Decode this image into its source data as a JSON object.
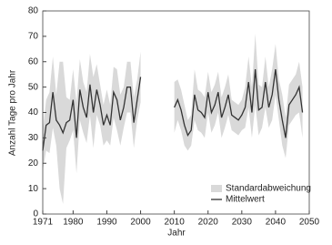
{
  "chart_data": {
    "type": "line",
    "xlabel": "Jahr",
    "ylabel": "Anzahl Tage pro Jahr",
    "x": [
      1971,
      1972,
      1973,
      1974,
      1975,
      1976,
      1977,
      1978,
      1979,
      1980,
      1981,
      1982,
      1983,
      1984,
      1985,
      1986,
      1987,
      1988,
      1989,
      1990,
      1991,
      1992,
      1993,
      1994,
      1995,
      1996,
      1997,
      1998,
      1999,
      2000,
      2001,
      2002,
      2003,
      2004,
      2005,
      2006,
      2007,
      2008,
      2009,
      2010,
      2011,
      2012,
      2013,
      2014,
      2015,
      2016,
      2017,
      2018,
      2019,
      2020,
      2021,
      2022,
      2023,
      2024,
      2025,
      2026,
      2027,
      2028,
      2029,
      2030,
      2031,
      2032,
      2033,
      2034,
      2035,
      2036,
      2037,
      2038,
      2039,
      2040,
      2041,
      2042,
      2043,
      2044,
      2045,
      2046,
      2047,
      2048
    ],
    "series": [
      {
        "name": "Standardabweichung",
        "color": "#d9d9d9",
        "band_of": 1,
        "values": [
          8,
          10,
          12,
          14,
          10,
          25,
          28,
          10,
          8,
          12,
          14,
          12,
          10,
          10,
          12,
          14,
          10,
          8,
          8,
          10,
          8,
          10,
          12,
          10,
          8,
          10,
          10,
          10,
          8,
          10,
          null,
          null,
          null,
          null,
          null,
          null,
          null,
          null,
          null,
          10,
          8,
          8,
          8,
          6,
          6,
          10,
          8,
          8,
          8,
          8,
          8,
          8,
          8,
          8,
          8,
          8,
          6,
          6,
          6,
          6,
          8,
          10,
          10,
          14,
          10,
          8,
          10,
          8,
          10,
          10,
          8,
          10,
          8,
          8,
          8,
          8,
          10,
          10
        ]
      },
      {
        "name": "Mittelwert",
        "color": "#333333",
        "values": [
          25,
          35,
          36,
          48,
          37,
          35,
          32,
          36,
          37,
          45,
          30,
          49,
          42,
          38,
          51,
          40,
          49,
          43,
          35,
          39,
          35,
          48,
          45,
          37,
          42,
          50,
          50,
          36,
          45,
          54,
          null,
          null,
          null,
          null,
          null,
          null,
          null,
          null,
          null,
          42,
          45,
          41,
          35,
          31,
          33,
          47,
          41,
          40,
          38,
          48,
          40,
          43,
          48,
          38,
          42,
          47,
          39,
          38,
          37,
          39,
          42,
          52,
          40,
          57,
          41,
          42,
          52,
          42,
          47,
          57,
          45,
          37,
          30,
          43,
          45,
          47,
          50,
          40
        ]
      }
    ],
    "xlim": [
      1971,
      2050
    ],
    "ylim": [
      0,
      80
    ],
    "xticks": [
      1971,
      1980,
      1990,
      2000,
      2010,
      2020,
      2030,
      2040,
      2050
    ],
    "yticks": [
      0,
      10,
      20,
      30,
      40,
      50,
      60,
      70,
      80
    ],
    "grid": false,
    "legend": "lower right"
  }
}
